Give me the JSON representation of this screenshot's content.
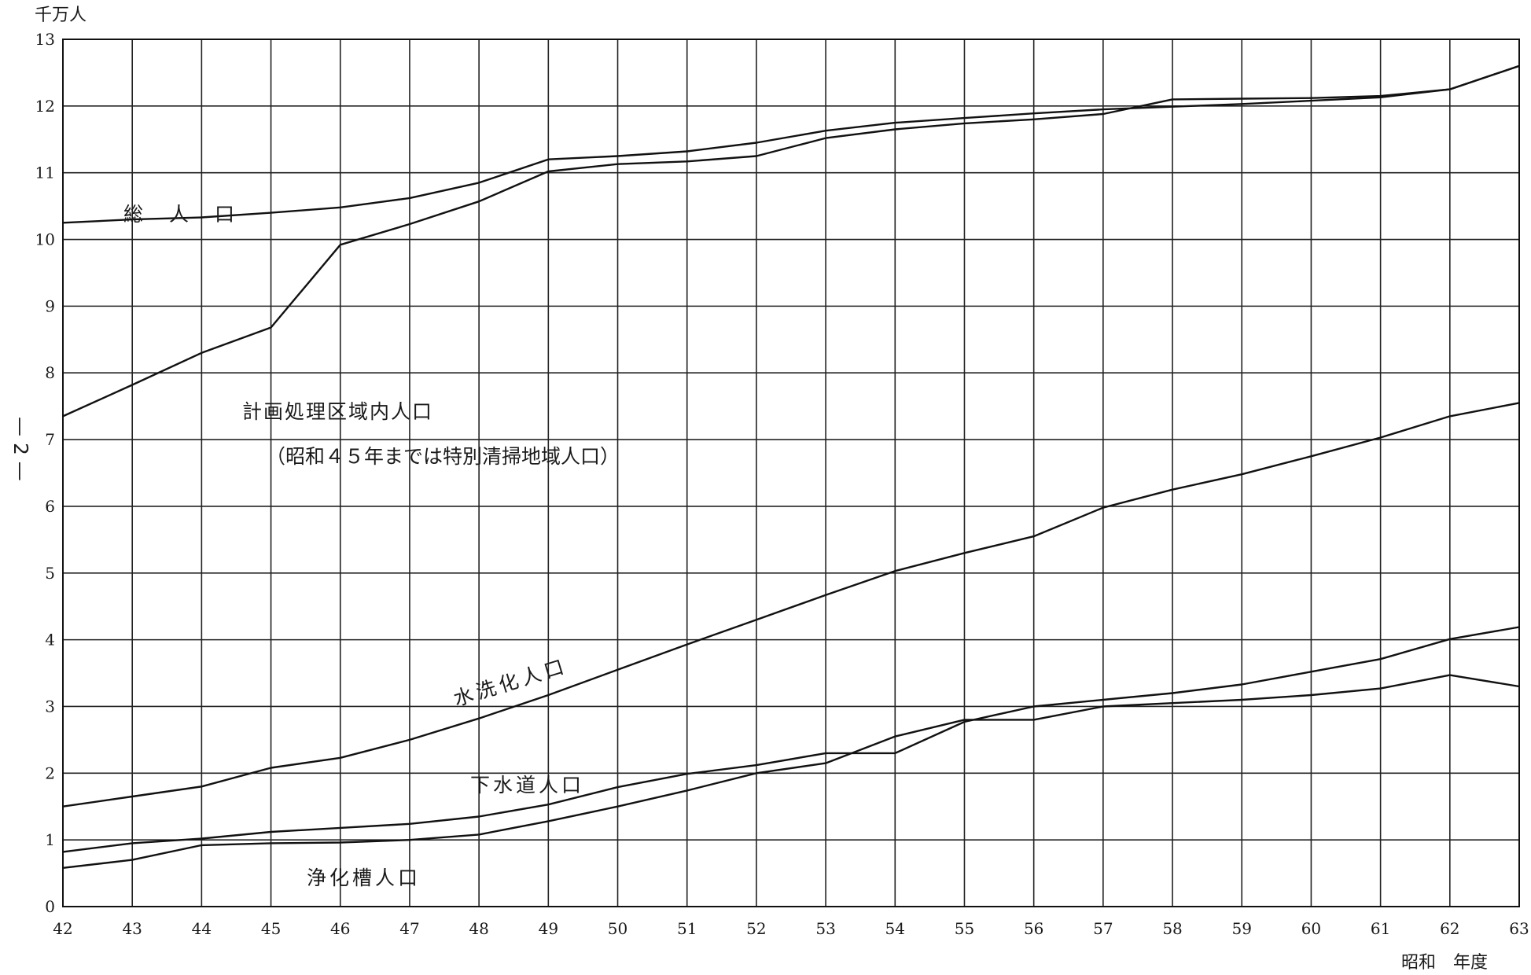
{
  "page_mark": "— 2 —",
  "chart_data": {
    "type": "line",
    "ylabel": "千万人",
    "xlabel": "昭和　年度",
    "ylim": [
      0,
      13
    ],
    "xlim": [
      42,
      63
    ],
    "grid": true,
    "x": [
      42,
      43,
      44,
      45,
      46,
      47,
      48,
      49,
      50,
      51,
      52,
      53,
      54,
      55,
      56,
      57,
      58,
      59,
      60,
      61,
      62,
      63
    ],
    "x_tick_labels": [
      "42",
      "43",
      "44",
      "45",
      "46",
      "47",
      "48",
      "49",
      "50",
      "51",
      "52",
      "53",
      "54",
      "55",
      "56",
      "57",
      "58",
      "59",
      "60",
      "61",
      "62",
      "63"
    ],
    "y_tick_labels": [
      "0",
      "1",
      "2",
      "3",
      "4",
      "5",
      "6",
      "7",
      "8",
      "9",
      "10",
      "11",
      "12",
      "13"
    ],
    "series": [
      {
        "name": "総　人　口",
        "values": [
          10.25,
          10.3,
          10.33,
          10.4,
          10.48,
          10.62,
          10.85,
          11.2,
          11.25,
          11.32,
          11.45,
          11.63,
          11.75,
          11.82,
          11.89,
          11.95,
          11.99,
          12.03,
          12.08,
          12.13,
          12.25,
          12.6
        ]
      },
      {
        "name": "計画処理区域内人口",
        "values": [
          7.35,
          7.82,
          8.3,
          8.68,
          9.92,
          10.23,
          10.57,
          11.02,
          11.13,
          11.17,
          11.25,
          11.52,
          11.65,
          11.74,
          11.8,
          11.88,
          12.1,
          12.11,
          12.12,
          12.15,
          12.25,
          12.6
        ]
      },
      {
        "name": "水洗化人口",
        "values": [
          1.5,
          1.65,
          1.8,
          2.08,
          2.23,
          2.5,
          2.82,
          3.17,
          3.55,
          3.93,
          4.3,
          4.67,
          5.03,
          5.3,
          5.55,
          5.98,
          6.25,
          6.48,
          6.75,
          7.03,
          7.35,
          7.55
        ]
      },
      {
        "name": "下水道人口",
        "values": [
          0.82,
          0.95,
          1.02,
          1.12,
          1.18,
          1.24,
          1.35,
          1.53,
          1.79,
          1.99,
          2.12,
          2.3,
          2.3,
          2.77,
          3.0,
          3.1,
          3.2,
          3.33,
          3.52,
          3.71,
          4.01,
          4.19
        ]
      },
      {
        "name": "浄化槽人口",
        "values": [
          0.58,
          0.7,
          0.92,
          0.95,
          0.96,
          1.0,
          1.08,
          1.28,
          1.5,
          1.74,
          2.0,
          2.15,
          2.55,
          2.8,
          2.8,
          3.0,
          3.05,
          3.1,
          3.17,
          3.27,
          3.47,
          3.3
        ]
      }
    ],
    "annotations": [
      "（昭和４５年までは特別清掃地域人口）"
    ]
  }
}
